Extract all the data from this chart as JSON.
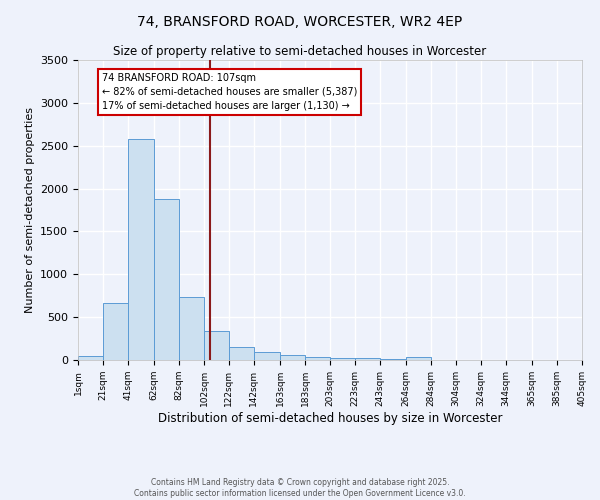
{
  "title1": "74, BRANSFORD ROAD, WORCESTER, WR2 4EP",
  "title2": "Size of property relative to semi-detached houses in Worcester",
  "xlabel": "Distribution of semi-detached houses by size in Worcester",
  "ylabel": "Number of semi-detached properties",
  "property_size": 107,
  "annotation_title": "74 BRANSFORD ROAD: 107sqm",
  "annotation_line1": "← 82% of semi-detached houses are smaller (5,387)",
  "annotation_line2": "17% of semi-detached houses are larger (1,130) →",
  "footnote1": "Contains HM Land Registry data © Crown copyright and database right 2025.",
  "footnote2": "Contains public sector information licensed under the Open Government Licence v3.0.",
  "bar_color": "#cce0f0",
  "bar_edge_color": "#5b9bd5",
  "vline_color": "#8b1a1a",
  "annotation_box_color": "#cc0000",
  "background_color": "#eef2fb",
  "bin_edges": [
    1,
    21,
    41,
    62,
    82,
    102,
    122,
    142,
    163,
    183,
    203,
    223,
    243,
    264,
    284,
    304,
    324,
    344,
    365,
    385,
    405
  ],
  "counts": [
    50,
    670,
    2580,
    1880,
    740,
    340,
    155,
    90,
    55,
    30,
    20,
    25,
    10,
    30,
    5,
    0,
    0,
    0,
    0,
    0
  ],
  "ylim": [
    0,
    3500
  ],
  "yticks": [
    0,
    500,
    1000,
    1500,
    2000,
    2500,
    3000,
    3500
  ]
}
